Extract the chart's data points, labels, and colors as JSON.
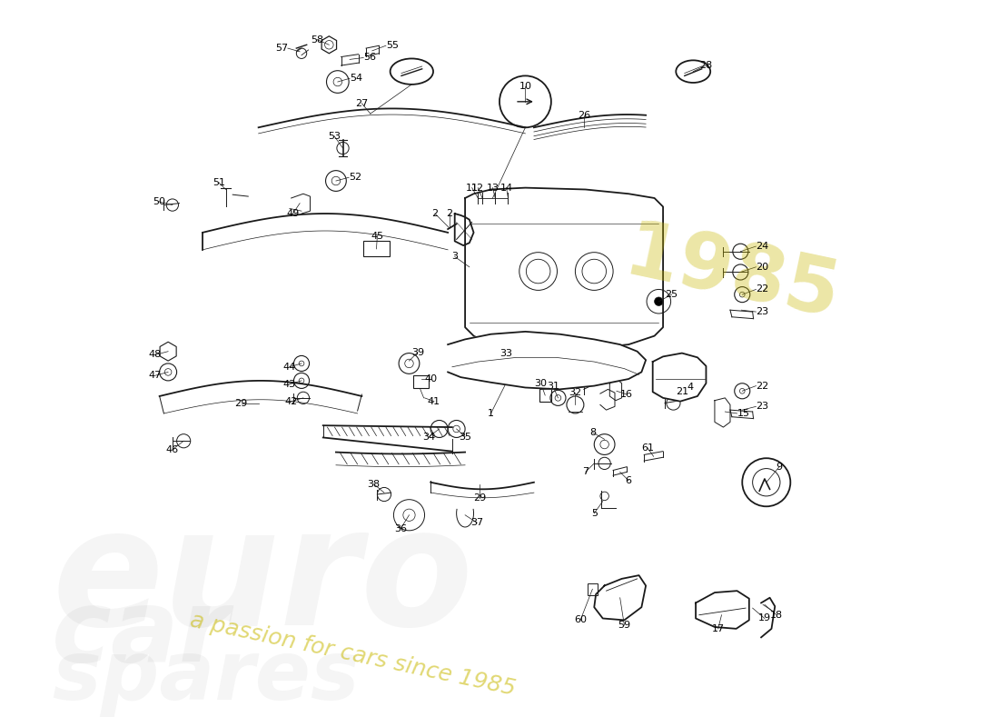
{
  "bg_color": "#ffffff",
  "line_color": "#1a1a1a",
  "figsize": [
    11.0,
    8.0
  ],
  "dpi": 100
}
